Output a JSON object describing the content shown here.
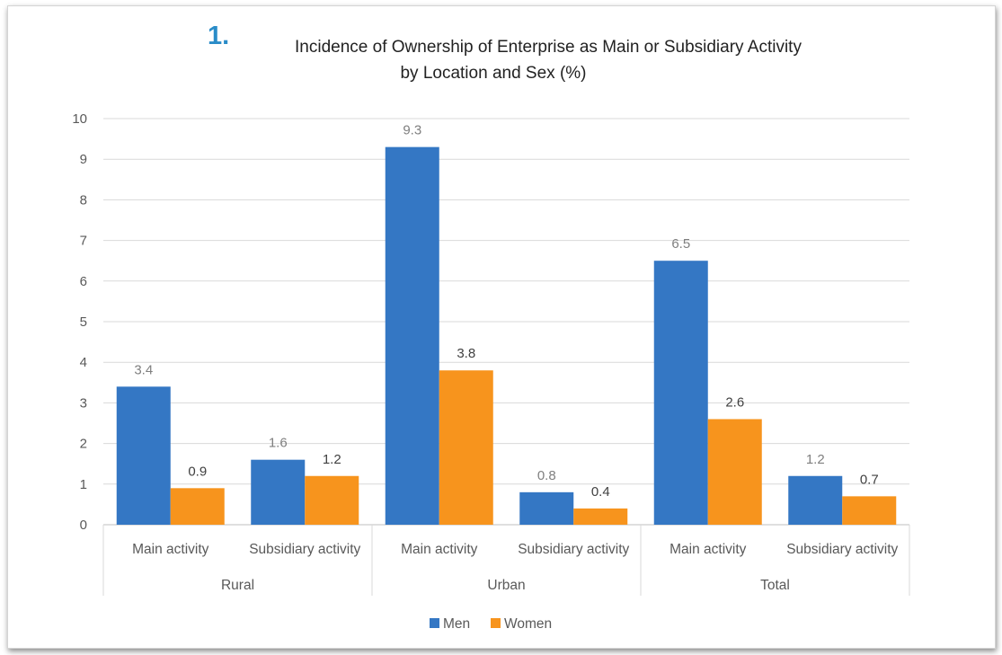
{
  "figure_number": "1.",
  "colors": {
    "men": "#3477c4",
    "women": "#f7941d",
    "grid": "#d9d9d9",
    "axis_text": "#595959"
  },
  "chart_data": {
    "type": "bar",
    "title_lines": [
      "Incidence of Ownership of Enterprise as Main or Subsidiary Activity",
      "by Location and Sex (%)"
    ],
    "groups": [
      {
        "name": "Rural",
        "categories": [
          "Main activity",
          "Subsidiary activity"
        ]
      },
      {
        "name": "Urban",
        "categories": [
          "Main activity",
          "Subsidiary activity"
        ]
      },
      {
        "name": "Total",
        "categories": [
          "Main activity",
          "Subsidiary activity"
        ]
      }
    ],
    "series": [
      {
        "name": "Men",
        "values": [
          3.4,
          1.6,
          9.3,
          0.8,
          6.5,
          1.2
        ],
        "labels": [
          "3.4",
          "1.6",
          "9.3",
          "0.8",
          "6.5",
          "1.2"
        ]
      },
      {
        "name": "Women",
        "values": [
          0.9,
          1.2,
          3.8,
          0.4,
          2.6,
          0.7
        ],
        "labels": [
          "0.9",
          "1.2",
          "3.8",
          "0.4",
          "2.6",
          "0.7"
        ]
      }
    ],
    "ylim": [
      0,
      10
    ],
    "yticks": [
      "0",
      "1",
      "2",
      "3",
      "4",
      "5",
      "6",
      "7",
      "8",
      "9",
      "10"
    ],
    "grid": true,
    "legend_position": "bottom"
  }
}
